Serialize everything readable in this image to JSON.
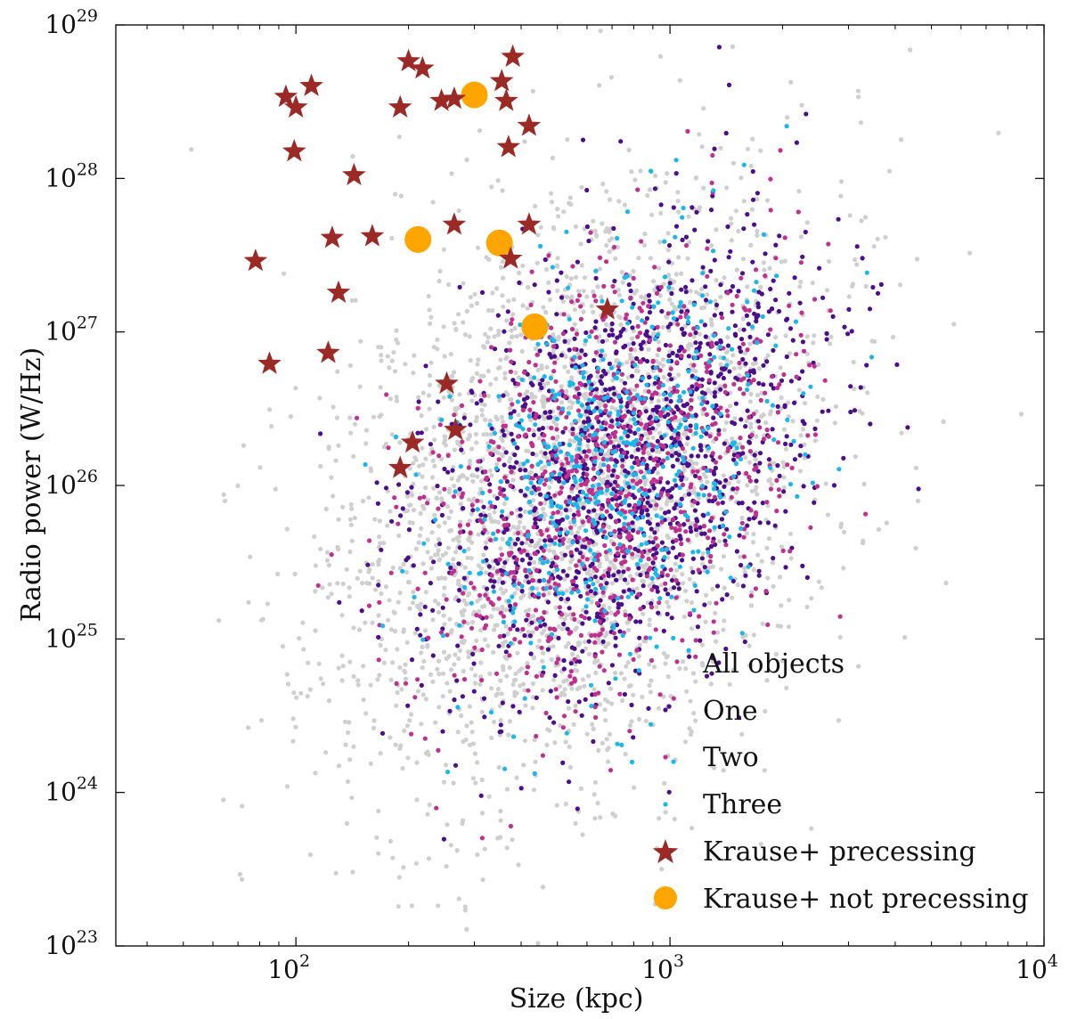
{
  "chart_data": {
    "type": "scatter",
    "xlabel": "Size (kpc)",
    "ylabel": "Radio power (W/Hz)",
    "x_scale": "log",
    "y_scale": "log",
    "xlim": [
      33,
      10000
    ],
    "ylim": [
      1e+23,
      1e+29
    ],
    "x_ticks": [
      {
        "value": 100,
        "base": "10",
        "exp": "2"
      },
      {
        "value": 1000,
        "base": "10",
        "exp": "3"
      },
      {
        "value": 10000,
        "base": "10",
        "exp": "4"
      }
    ],
    "y_ticks": [
      {
        "value": 1e+23,
        "base": "10",
        "exp": "23"
      },
      {
        "value": 1e+24,
        "base": "10",
        "exp": "24"
      },
      {
        "value": 1e+25,
        "base": "10",
        "exp": "25"
      },
      {
        "value": 1e+26,
        "base": "10",
        "exp": "26"
      },
      {
        "value": 1e+27,
        "base": "10",
        "exp": "27"
      },
      {
        "value": 1e+28,
        "base": "10",
        "exp": "28"
      },
      {
        "value": 1e+29,
        "base": "10",
        "exp": "29"
      }
    ],
    "legend_position": "lower-right",
    "series": [
      {
        "name": "All objects",
        "color": "#cfcfcf",
        "marker": "dot",
        "distribution": {
          "n": 2600,
          "log_x_center": 2.74,
          "log_x_spread": 0.33,
          "log_y_center": 25.95,
          "log_y_spread": 0.95,
          "slope": 1.2,
          "seed": 11
        }
      },
      {
        "name": "One",
        "color": "#4b0f8c",
        "marker": "dot",
        "distribution": {
          "n": 1300,
          "log_x_center": 2.88,
          "log_x_spread": 0.26,
          "log_y_center": 26.1,
          "log_y_spread": 0.7,
          "slope": 1.3,
          "seed": 23
        }
      },
      {
        "name": "Two",
        "color": "#c0308f",
        "marker": "dot",
        "distribution": {
          "n": 900,
          "log_x_center": 2.84,
          "log_x_spread": 0.24,
          "log_y_center": 26.05,
          "log_y_spread": 0.68,
          "slope": 1.3,
          "seed": 37
        }
      },
      {
        "name": "Three",
        "color": "#1ab8ea",
        "marker": "dot",
        "distribution": {
          "n": 520,
          "log_x_center": 2.87,
          "log_x_spread": 0.24,
          "log_y_center": 26.1,
          "log_y_spread": 0.68,
          "slope": 1.3,
          "seed": 53
        }
      },
      {
        "name": "Krause+ precessing",
        "color": "#9b2a26",
        "marker": "star",
        "points": [
          [
            200,
            5.8e+28
          ],
          [
            218,
            5.2e+28
          ],
          [
            380,
            6.2e+28
          ],
          [
            355,
            4.3e+28
          ],
          [
            245,
            3.2e+28
          ],
          [
            265,
            3.3e+28
          ],
          [
            365,
            3.2e+28
          ],
          [
            190,
            2.9e+28
          ],
          [
            110,
            4e+28
          ],
          [
            94,
            3.4e+28
          ],
          [
            100,
            2.9e+28
          ],
          [
            420,
            2.2e+28
          ],
          [
            370,
            1.6e+28
          ],
          [
            99,
            1.5e+28
          ],
          [
            143,
            1.05e+28
          ],
          [
            265,
            5e+27
          ],
          [
            420,
            5e+27
          ],
          [
            125,
            4.1e+27
          ],
          [
            160,
            4.2e+27
          ],
          [
            375,
            3e+27
          ],
          [
            78,
            2.9e+27
          ],
          [
            130,
            1.8e+27
          ],
          [
            680,
            1.4e+27
          ],
          [
            85,
            6.2e+26
          ],
          [
            122,
            7.3e+26
          ],
          [
            253,
            4.6e+26
          ],
          [
            267,
            2.3e+26
          ],
          [
            205,
            1.9e+26
          ],
          [
            190,
            1.3e+26
          ]
        ]
      },
      {
        "name": "Krause+ not precessing",
        "color": "#ffa500",
        "marker": "circle",
        "points": [
          [
            300,
            3.5e+28
          ],
          [
            212,
            4e+27
          ],
          [
            350,
            3.8e+27
          ],
          [
            435,
            1.08e+27
          ]
        ]
      }
    ]
  }
}
